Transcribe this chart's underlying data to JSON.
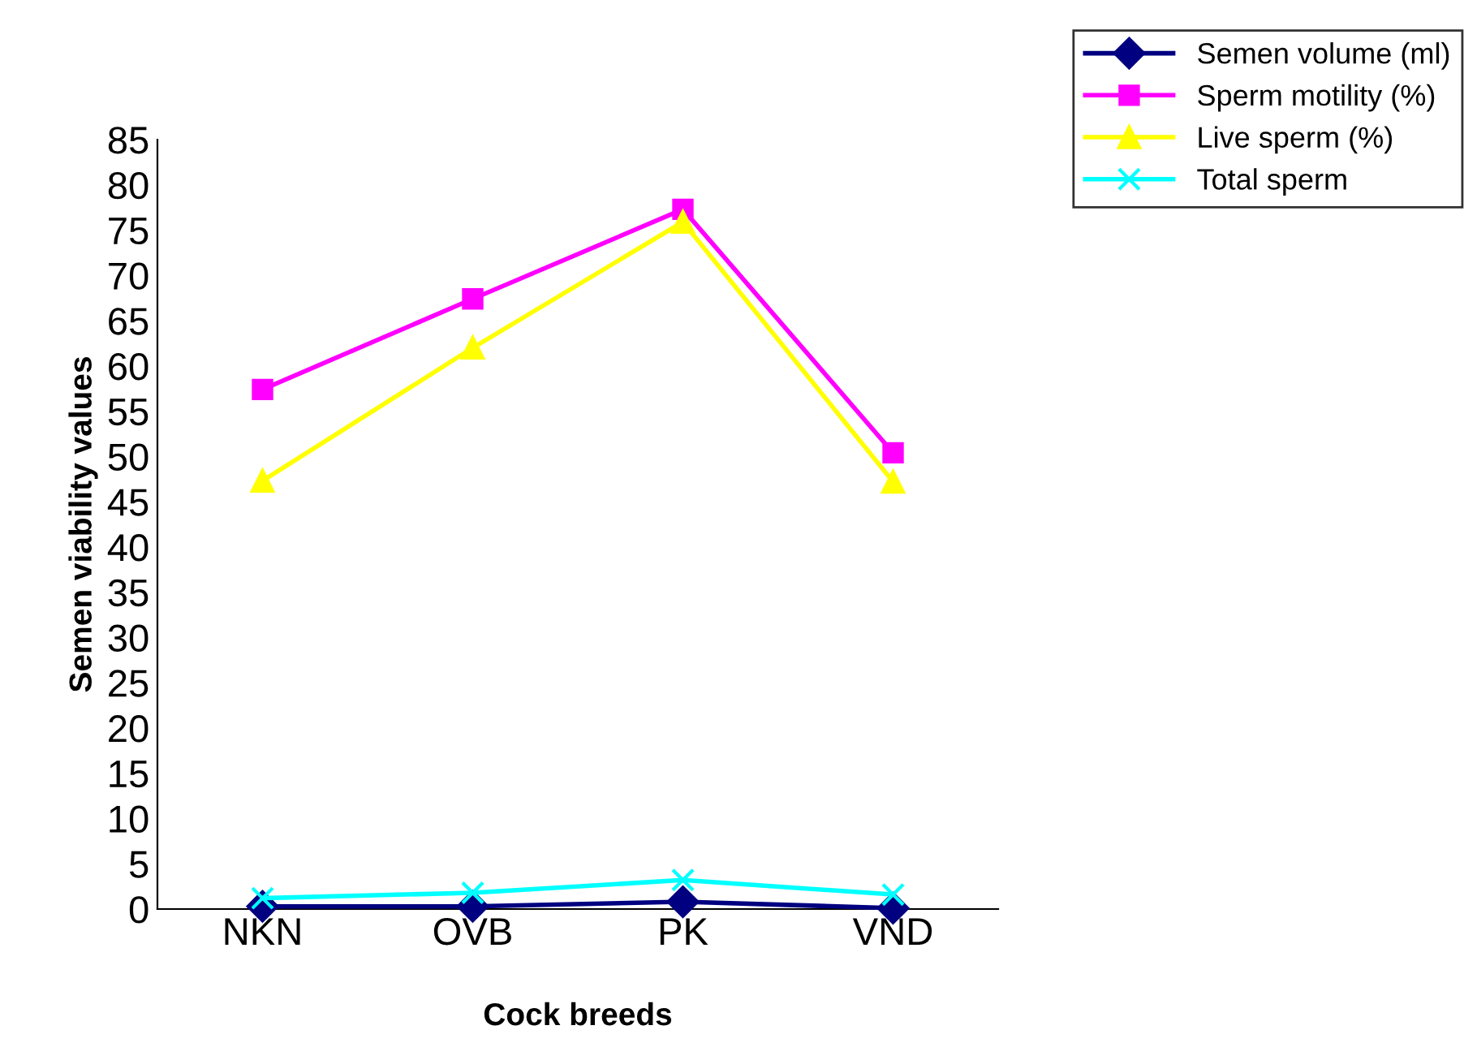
{
  "chart_data": {
    "type": "line",
    "xlabel": "Cock breeds",
    "ylabel": "Semen viability values",
    "categories": [
      "NKN",
      "OVB",
      "PK",
      "VND"
    ],
    "series": [
      {
        "name": "Semen volume (ml)",
        "color": "#000080",
        "marker": "diamond",
        "values": [
          0.3,
          0.3,
          0.8,
          0.1
        ]
      },
      {
        "name": "Sperm motility (%)",
        "color": "#ff00ff",
        "marker": "square",
        "values": [
          57.4,
          67.4,
          77.3,
          50.4
        ]
      },
      {
        "name": "Live sperm (%)",
        "color": "#ffff00",
        "marker": "triangle",
        "values": [
          47.3,
          62,
          75.9,
          47.2
        ]
      },
      {
        "name": "Total sperm",
        "color": "#00ffff",
        "marker": "cross",
        "values": [
          1.2,
          1.8,
          3.2,
          1.6
        ]
      }
    ],
    "ylim": [
      0,
      85
    ],
    "yticks": [
      0,
      5,
      10,
      15,
      20,
      25,
      30,
      35,
      40,
      45,
      50,
      55,
      60,
      65,
      70,
      75,
      80,
      85
    ],
    "grid": false,
    "legend": "top right"
  }
}
